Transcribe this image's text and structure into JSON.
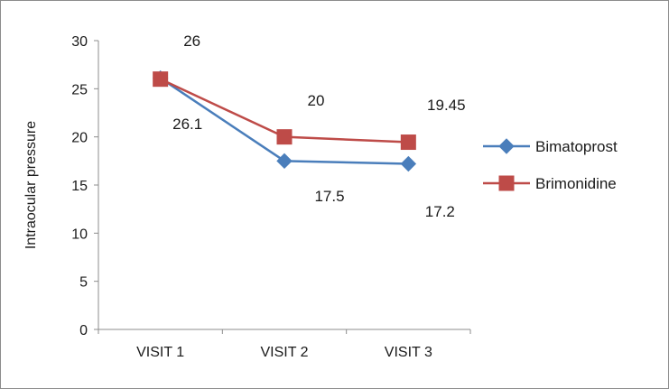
{
  "chart_data": {
    "type": "line",
    "categories": [
      "VISIT 1",
      "VISIT 2",
      "VISIT 3"
    ],
    "ylabel": "Intraocular pressure",
    "xlabel": "",
    "ylim": [
      0,
      30
    ],
    "yticks": [
      "0",
      "5",
      "10",
      "15",
      "20",
      "25",
      "30"
    ],
    "grid": false,
    "legend_position": "right",
    "series": [
      {
        "name": "Bimatoprost",
        "values": [
          26.1,
          17.5,
          17.2
        ],
        "labels": [
          "26.1",
          "17.5",
          "17.2"
        ],
        "color": "#4a7ebb",
        "marker": "diamond"
      },
      {
        "name": "Brimonidine",
        "values": [
          26,
          20,
          19.45
        ],
        "labels": [
          "26",
          "20",
          "19.45"
        ],
        "color": "#be4b48",
        "marker": "square"
      }
    ]
  }
}
